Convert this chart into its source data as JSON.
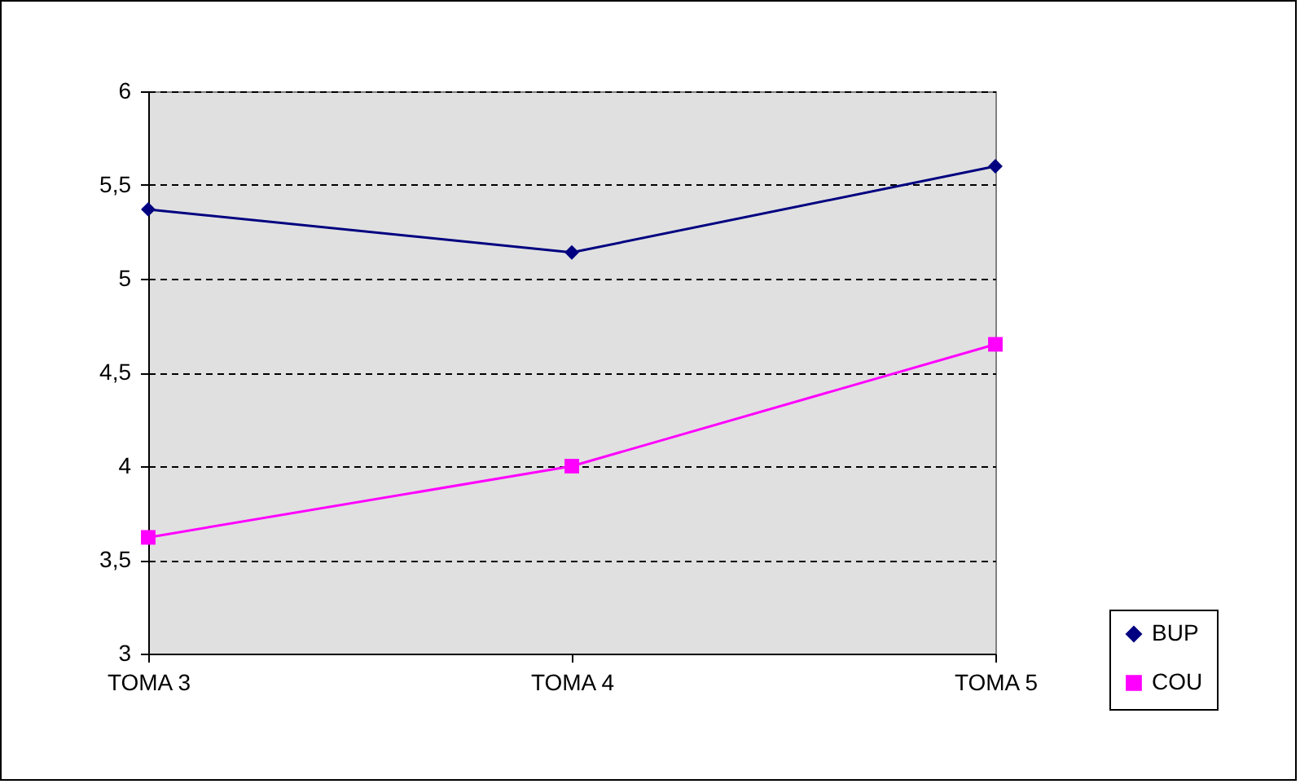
{
  "chart_data": {
    "type": "line",
    "categories": [
      "TOMA 3",
      "TOMA 4",
      "TOMA 5"
    ],
    "series": [
      {
        "name": "BUP",
        "color": "#000080",
        "marker": "diamond",
        "values": [
          5.37,
          5.14,
          5.6
        ]
      },
      {
        "name": "COU",
        "color": "#ff00ff",
        "marker": "square",
        "values": [
          3.62,
          4.0,
          4.65
        ]
      }
    ],
    "ylim": [
      3,
      6
    ],
    "yticks": [
      3,
      {
        "value": 3.5,
        "label": "3,5"
      },
      4,
      {
        "value": 4.5,
        "label": "4,5"
      },
      5,
      {
        "value": 5.5,
        "label": "5,5"
      },
      6
    ],
    "grid": "y",
    "legend": "bottom right",
    "line_style": "solid"
  }
}
